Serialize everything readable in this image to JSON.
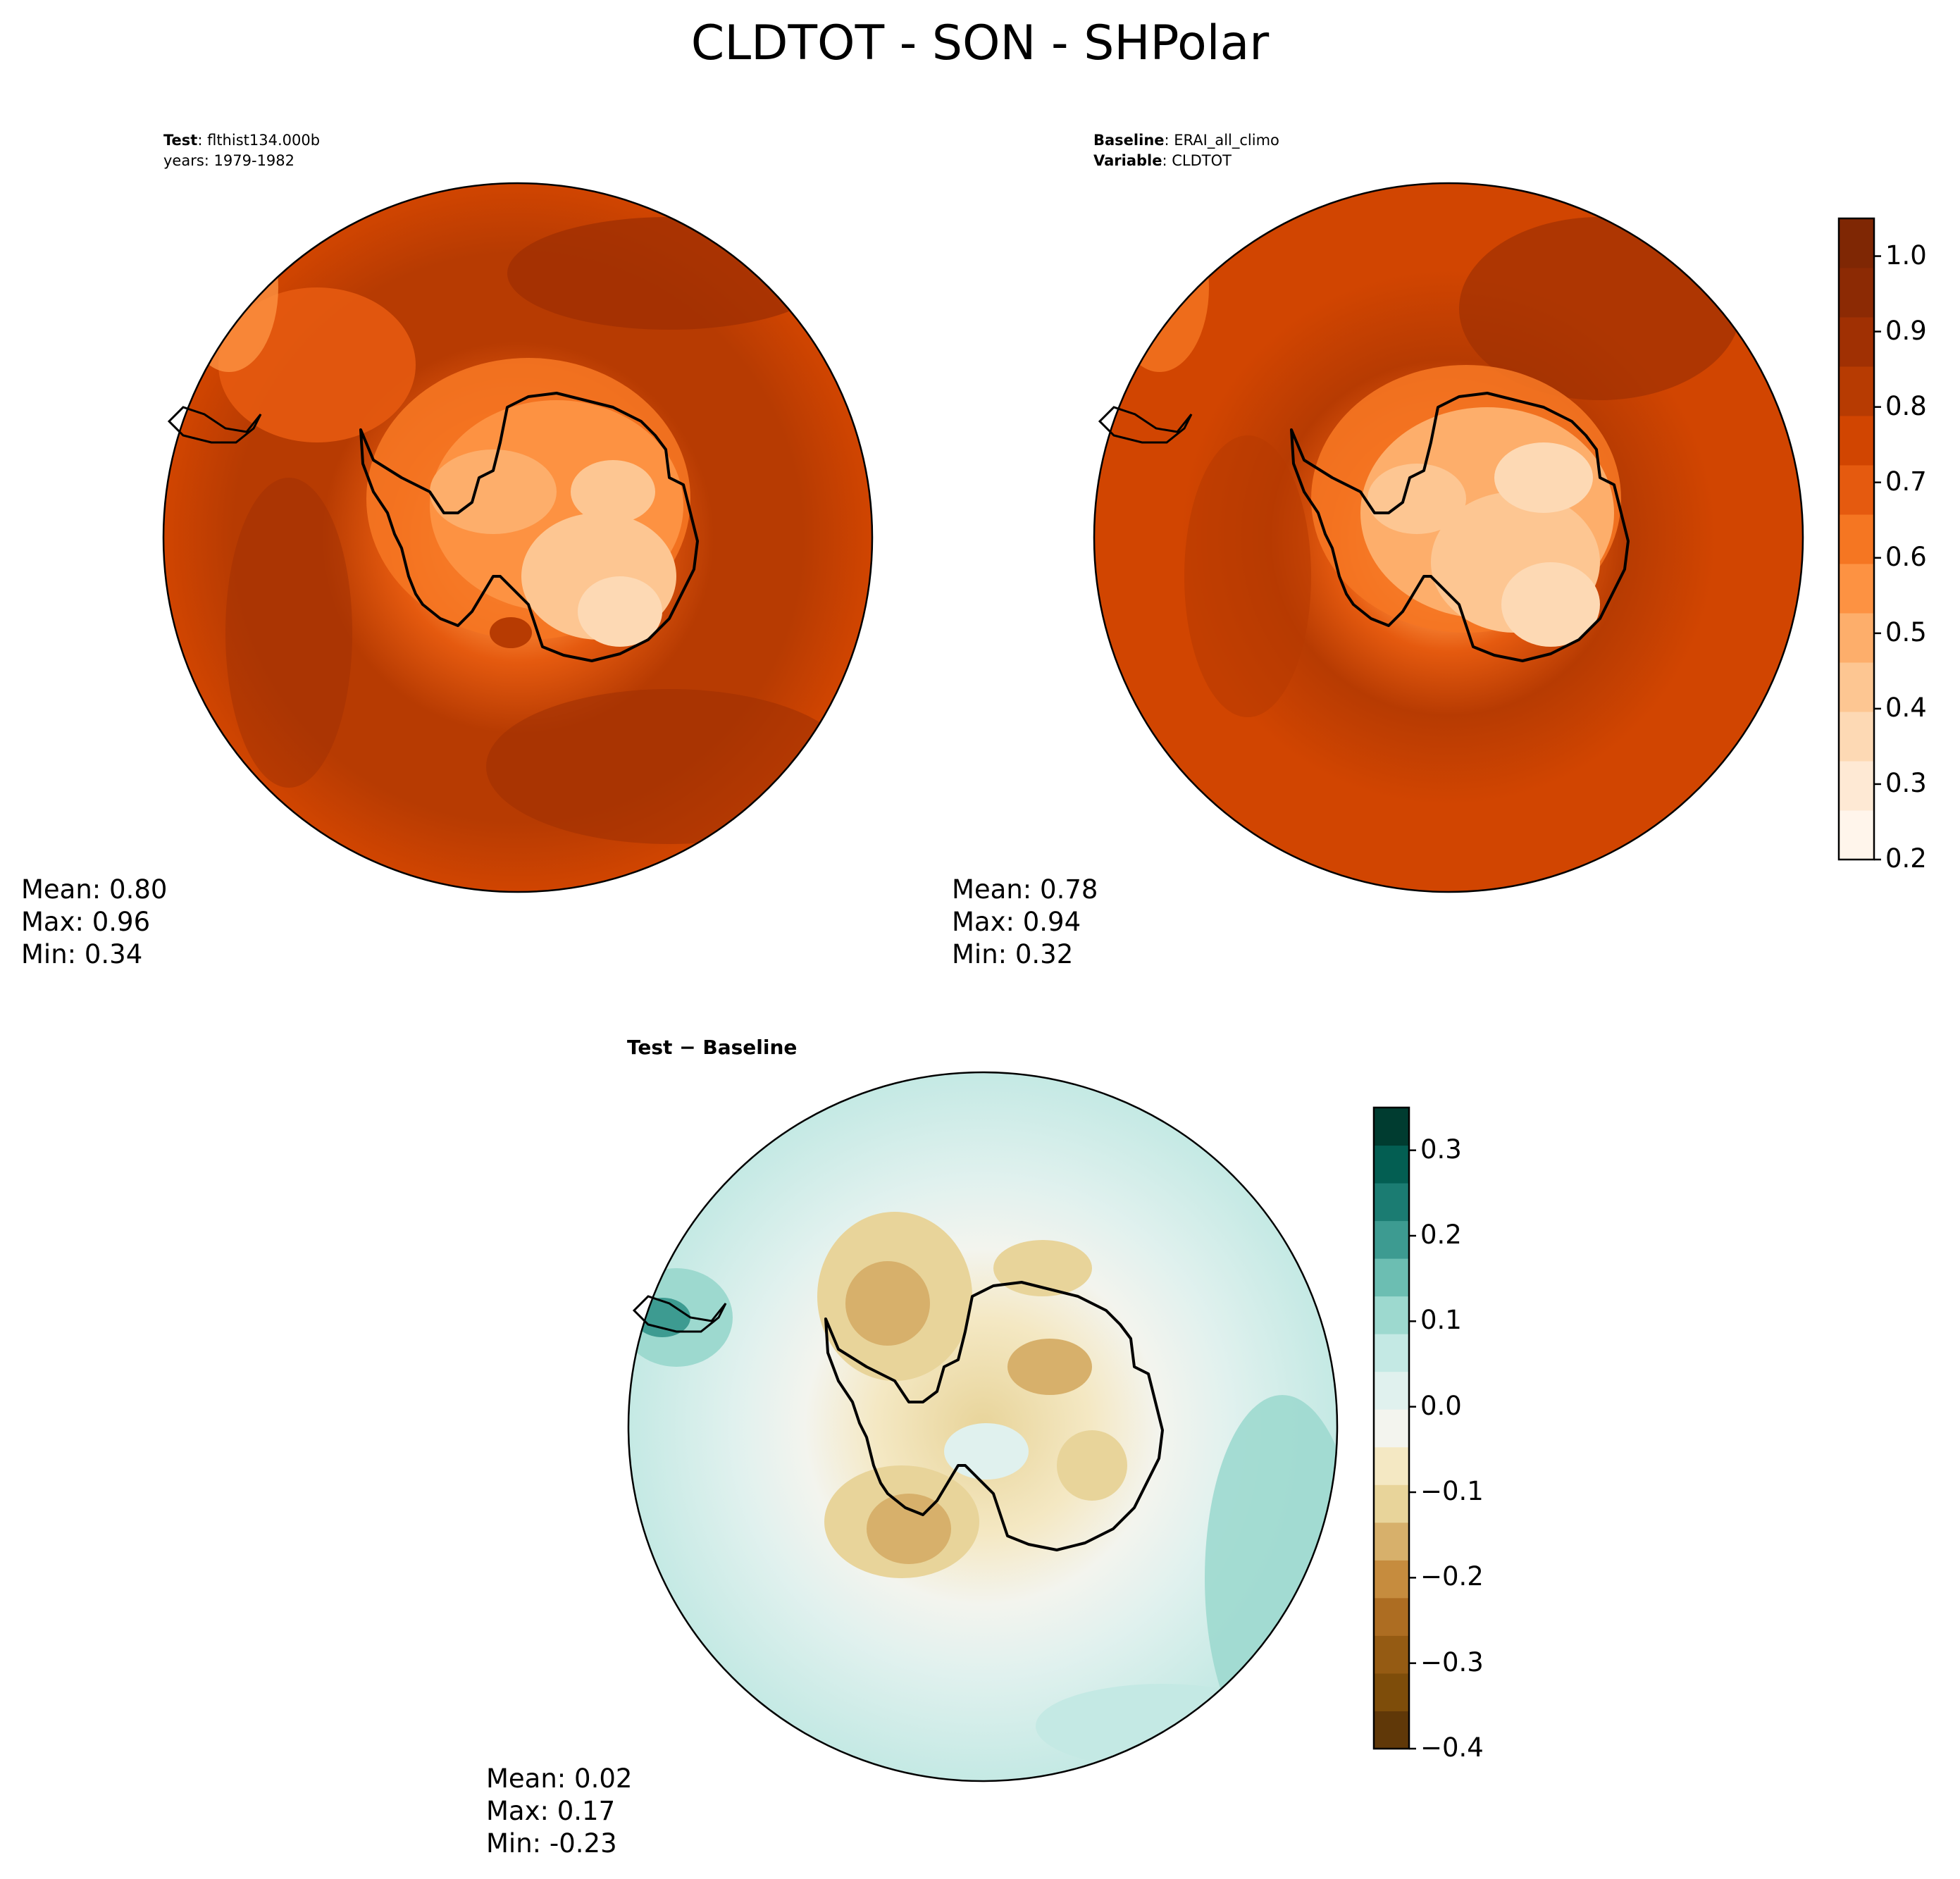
{
  "figure": {
    "title": "CLDTOT - SON - SHPolar"
  },
  "panels": {
    "test": {
      "label_key": "Test",
      "label_value": "flthist134.000b",
      "years_line": "years: 1979-1982",
      "mean": "Mean:  0.80",
      "max": "Max:  0.96",
      "min": "Min:  0.34"
    },
    "baseline": {
      "label_key": "Baseline",
      "label_value": "ERAI_all_climo",
      "variable_key": "Variable",
      "variable_value": "CLDTOT",
      "mean": "Mean:  0.78",
      "max": "Max:  0.94",
      "min": "Min:  0.32"
    },
    "diff": {
      "title": "Test − Baseline",
      "mean": "Mean:  0.02",
      "max": "Max:  0.17",
      "min": "Min: -0.23"
    }
  },
  "colorbars": {
    "field": {
      "colormap": "Oranges",
      "ticks": [
        "0.2",
        "0.3",
        "0.4",
        "0.5",
        "0.6",
        "0.7",
        "0.8",
        "0.9",
        "1.0"
      ],
      "colors": [
        "#fff5eb",
        "#fee9d4",
        "#fdd9b4",
        "#fdc692",
        "#fdae6b",
        "#fd9242",
        "#f57622",
        "#e55a0f",
        "#d14501",
        "#b73b02",
        "#a03003",
        "#8c2a04",
        "#7f2704"
      ]
    },
    "diff": {
      "colormap": "BrBG",
      "ticks": [
        "−0.4",
        "−0.3",
        "−0.2",
        "−0.1",
        "0.0",
        "0.1",
        "0.2",
        "0.3"
      ],
      "colors": [
        "#603808",
        "#7e4d0a",
        "#955b13",
        "#ad6d22",
        "#c68c3e",
        "#d7b06b",
        "#e8d49a",
        "#f4e8c3",
        "#f3f4ee",
        "#e0f1ee",
        "#c4e9e4",
        "#9dd9cf",
        "#6cbeb2",
        "#3d9b91",
        "#1b7c72",
        "#035e52",
        "#003c30"
      ]
    }
  }
}
